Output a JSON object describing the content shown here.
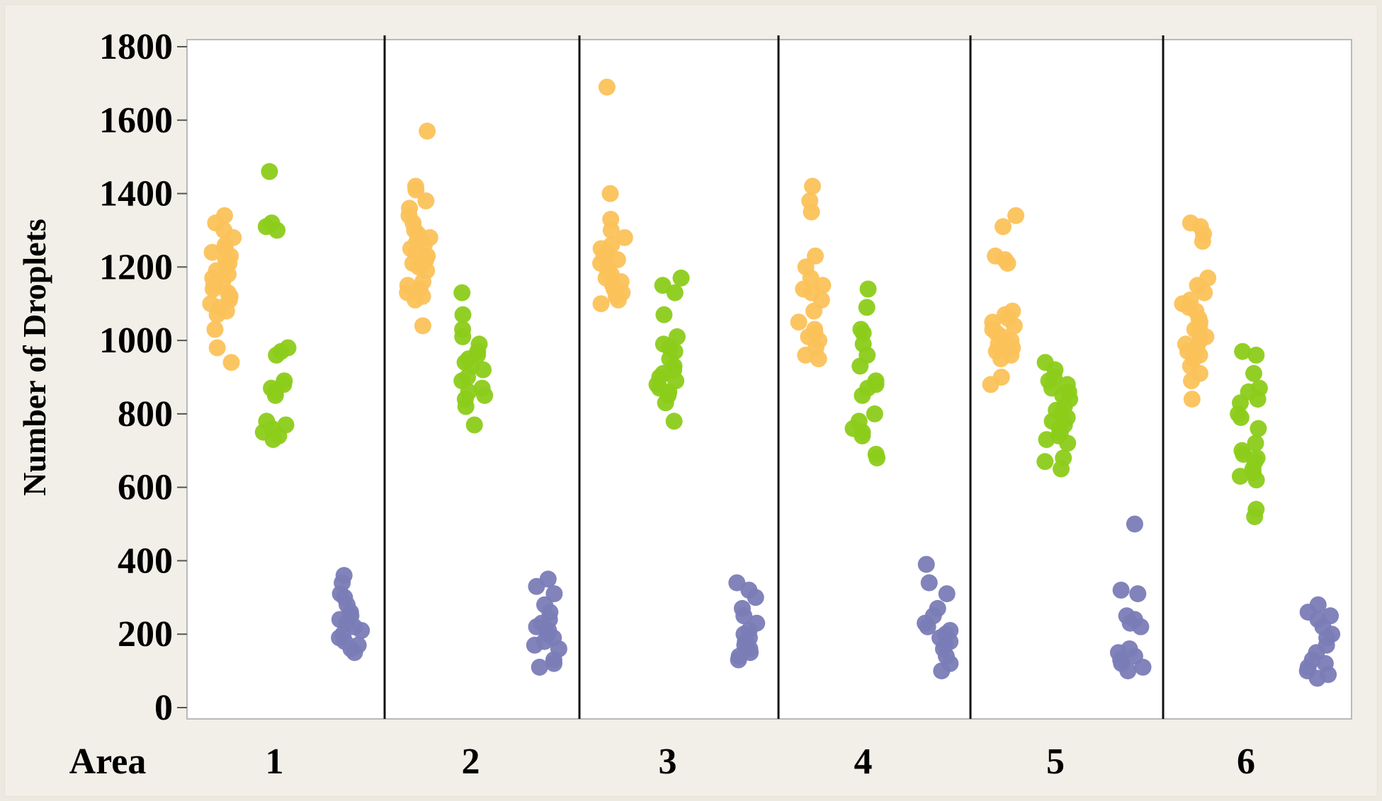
{
  "chart_data": {
    "type": "scatter",
    "ylabel": "Number of Droplets",
    "xlabel": "Area",
    "ylim": [
      0,
      1800
    ],
    "yticks": [
      0,
      200,
      400,
      600,
      800,
      1000,
      1200,
      1400,
      1600,
      1800
    ],
    "groups": [
      "1",
      "2",
      "3",
      "4",
      "5",
      "6"
    ],
    "grid": false,
    "legend": "none",
    "colors": [
      "#fbc25a",
      "#8ccc1a",
      "#7a7cb6"
    ],
    "series": [
      {
        "values_by_group": [
          [
            1340,
            1320,
            1300,
            1280,
            1260,
            1250,
            1240,
            1230,
            1220,
            1210,
            1200,
            1190,
            1180,
            1170,
            1160,
            1150,
            1140,
            1130,
            1120,
            1110,
            1100,
            1090,
            1080,
            1070,
            1030,
            980,
            940
          ],
          [
            1570,
            1420,
            1410,
            1380,
            1360,
            1340,
            1320,
            1300,
            1290,
            1280,
            1270,
            1260,
            1250,
            1240,
            1230,
            1220,
            1210,
            1200,
            1190,
            1160,
            1150,
            1140,
            1130,
            1120,
            1110,
            1040
          ],
          [
            1690,
            1400,
            1330,
            1300,
            1280,
            1260,
            1250,
            1240,
            1230,
            1220,
            1210,
            1200,
            1190,
            1180,
            1170,
            1160,
            1150,
            1140,
            1130,
            1120,
            1110,
            1100
          ],
          [
            1420,
            1380,
            1350,
            1230,
            1200,
            1170,
            1150,
            1140,
            1130,
            1110,
            1080,
            1050,
            1030,
            1020,
            1010,
            1000,
            980,
            960,
            950
          ],
          [
            1340,
            1310,
            1230,
            1220,
            1210,
            1080,
            1070,
            1060,
            1050,
            1040,
            1030,
            1020,
            1010,
            1000,
            990,
            980,
            970,
            960,
            950,
            900,
            880
          ],
          [
            1320,
            1310,
            1290,
            1270,
            1170,
            1150,
            1130,
            1110,
            1100,
            1090,
            1080,
            1060,
            1050,
            1040,
            1030,
            1020,
            1010,
            1000,
            990,
            980,
            970,
            960,
            950,
            930,
            910,
            890,
            840
          ]
        ]
      },
      {
        "values_by_group": [
          [
            1460,
            1320,
            1310,
            1300,
            980,
            970,
            960,
            890,
            880,
            870,
            860,
            850,
            780,
            770,
            760,
            750,
            740,
            730
          ],
          [
            1130,
            1070,
            1030,
            1010,
            990,
            970,
            960,
            950,
            940,
            930,
            920,
            900,
            890,
            870,
            860,
            850,
            840,
            820,
            770
          ],
          [
            1170,
            1150,
            1130,
            1070,
            1010,
            990,
            980,
            970,
            950,
            930,
            920,
            910,
            900,
            890,
            880,
            870,
            860,
            850,
            830,
            780
          ],
          [
            1140,
            1090,
            1030,
            1020,
            990,
            960,
            930,
            890,
            880,
            870,
            850,
            800,
            780,
            760,
            750,
            740,
            690,
            680
          ],
          [
            940,
            920,
            900,
            890,
            880,
            870,
            860,
            850,
            840,
            820,
            810,
            800,
            790,
            780,
            770,
            760,
            750,
            740,
            730,
            720,
            680,
            670,
            650
          ],
          [
            970,
            960,
            910,
            870,
            860,
            840,
            830,
            800,
            790,
            760,
            720,
            700,
            690,
            680,
            670,
            650,
            640,
            630,
            620,
            540,
            520
          ]
        ]
      },
      {
        "values_by_group": [
          [
            360,
            340,
            310,
            300,
            280,
            260,
            250,
            240,
            230,
            220,
            210,
            200,
            190,
            180,
            170,
            160,
            150
          ],
          [
            350,
            330,
            310,
            280,
            260,
            240,
            230,
            220,
            210,
            200,
            190,
            180,
            170,
            160,
            130,
            120,
            110
          ],
          [
            340,
            320,
            300,
            270,
            250,
            230,
            210,
            200,
            190,
            180,
            170,
            160,
            150,
            140,
            130
          ],
          [
            390,
            340,
            310,
            270,
            250,
            230,
            220,
            210,
            200,
            190,
            180,
            170,
            160,
            140,
            120,
            100
          ],
          [
            500,
            320,
            310,
            250,
            240,
            230,
            220,
            160,
            150,
            140,
            130,
            120,
            110,
            100
          ],
          [
            280,
            260,
            250,
            240,
            220,
            200,
            190,
            170,
            150,
            130,
            120,
            110,
            100,
            90,
            80
          ]
        ]
      }
    ]
  }
}
